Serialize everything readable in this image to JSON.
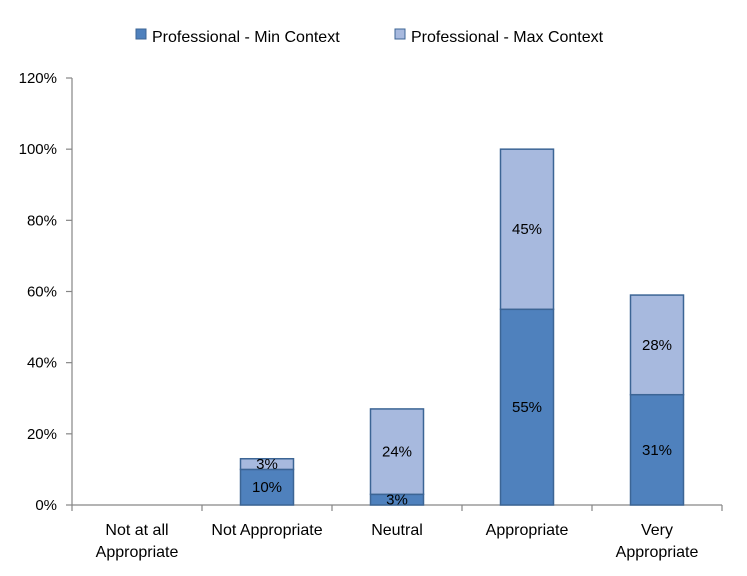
{
  "chart_data": {
    "type": "bar",
    "stacked": true,
    "categories": [
      [
        "Not at all",
        "Appropriate"
      ],
      [
        "Not Appropriate"
      ],
      [
        "Neutral"
      ],
      [
        "Appropriate"
      ],
      [
        "Very",
        "Appropriate"
      ]
    ],
    "series": [
      {
        "name": "Professional - Min Context",
        "values": [
          0,
          10,
          3,
          55,
          31
        ],
        "labels": [
          "",
          "10%",
          "3%",
          "55%",
          "31%"
        ],
        "color": "#4F81BD"
      },
      {
        "name": "Professional - Max Context",
        "values": [
          0,
          3,
          24,
          45,
          28
        ],
        "labels": [
          "",
          "3%",
          "24%",
          "45%",
          "28%"
        ],
        "color": "#A7B9DE"
      }
    ],
    "yticks": [
      "0%",
      "20%",
      "40%",
      "60%",
      "80%",
      "100%",
      "120%"
    ],
    "ylim": [
      0,
      120
    ],
    "grid": false,
    "legend_position": "top",
    "title": "",
    "xlabel": "",
    "ylabel": ""
  }
}
